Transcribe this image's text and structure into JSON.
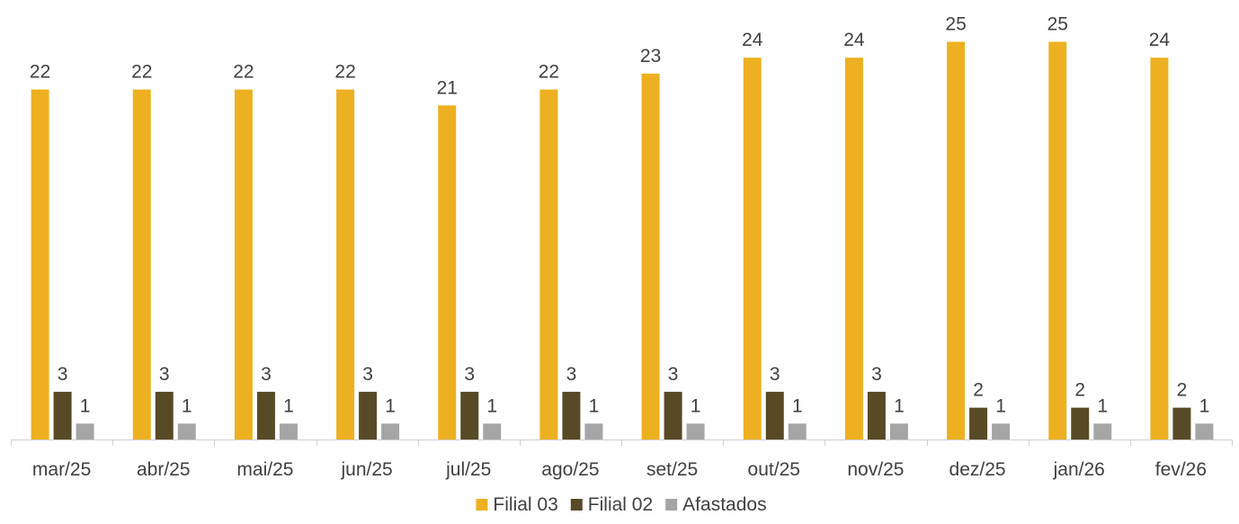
{
  "chart_data": {
    "type": "bar",
    "title": "",
    "xlabel": "",
    "ylabel": "",
    "ylim": [
      0,
      25
    ],
    "grid": false,
    "legend_position": "bottom",
    "categories": [
      "mar/25",
      "abr/25",
      "mai/25",
      "jun/25",
      "jul/25",
      "ago/25",
      "set/25",
      "out/25",
      "nov/25",
      "dez/25",
      "jan/26",
      "fev/26"
    ],
    "series": [
      {
        "name": "Filial 03",
        "color": "#EDB020",
        "values": [
          22,
          22,
          22,
          22,
          21,
          22,
          23,
          24,
          24,
          25,
          25,
          24
        ],
        "labels": [
          "22",
          "22",
          "22",
          "22",
          "21",
          "22",
          "23",
          "24",
          "24",
          "25",
          "25",
          "24"
        ]
      },
      {
        "name": "Filial 02",
        "color": "#584A26",
        "values": [
          3,
          3,
          3,
          3,
          3,
          3,
          3,
          3,
          3,
          2,
          2,
          2
        ],
        "labels": [
          "3",
          "3",
          "3",
          "3",
          "3",
          "3",
          "3",
          "3",
          "3",
          "2",
          "2",
          "2"
        ]
      },
      {
        "name": "Afastados",
        "color": "#A5A5A5",
        "values": [
          1,
          1,
          1,
          1,
          1,
          1,
          1,
          1,
          1,
          1,
          1,
          1
        ],
        "labels": [
          "1",
          "1",
          "1",
          "1",
          "1",
          "1",
          "1",
          "1",
          "1",
          "1",
          "1",
          "1"
        ]
      }
    ]
  }
}
